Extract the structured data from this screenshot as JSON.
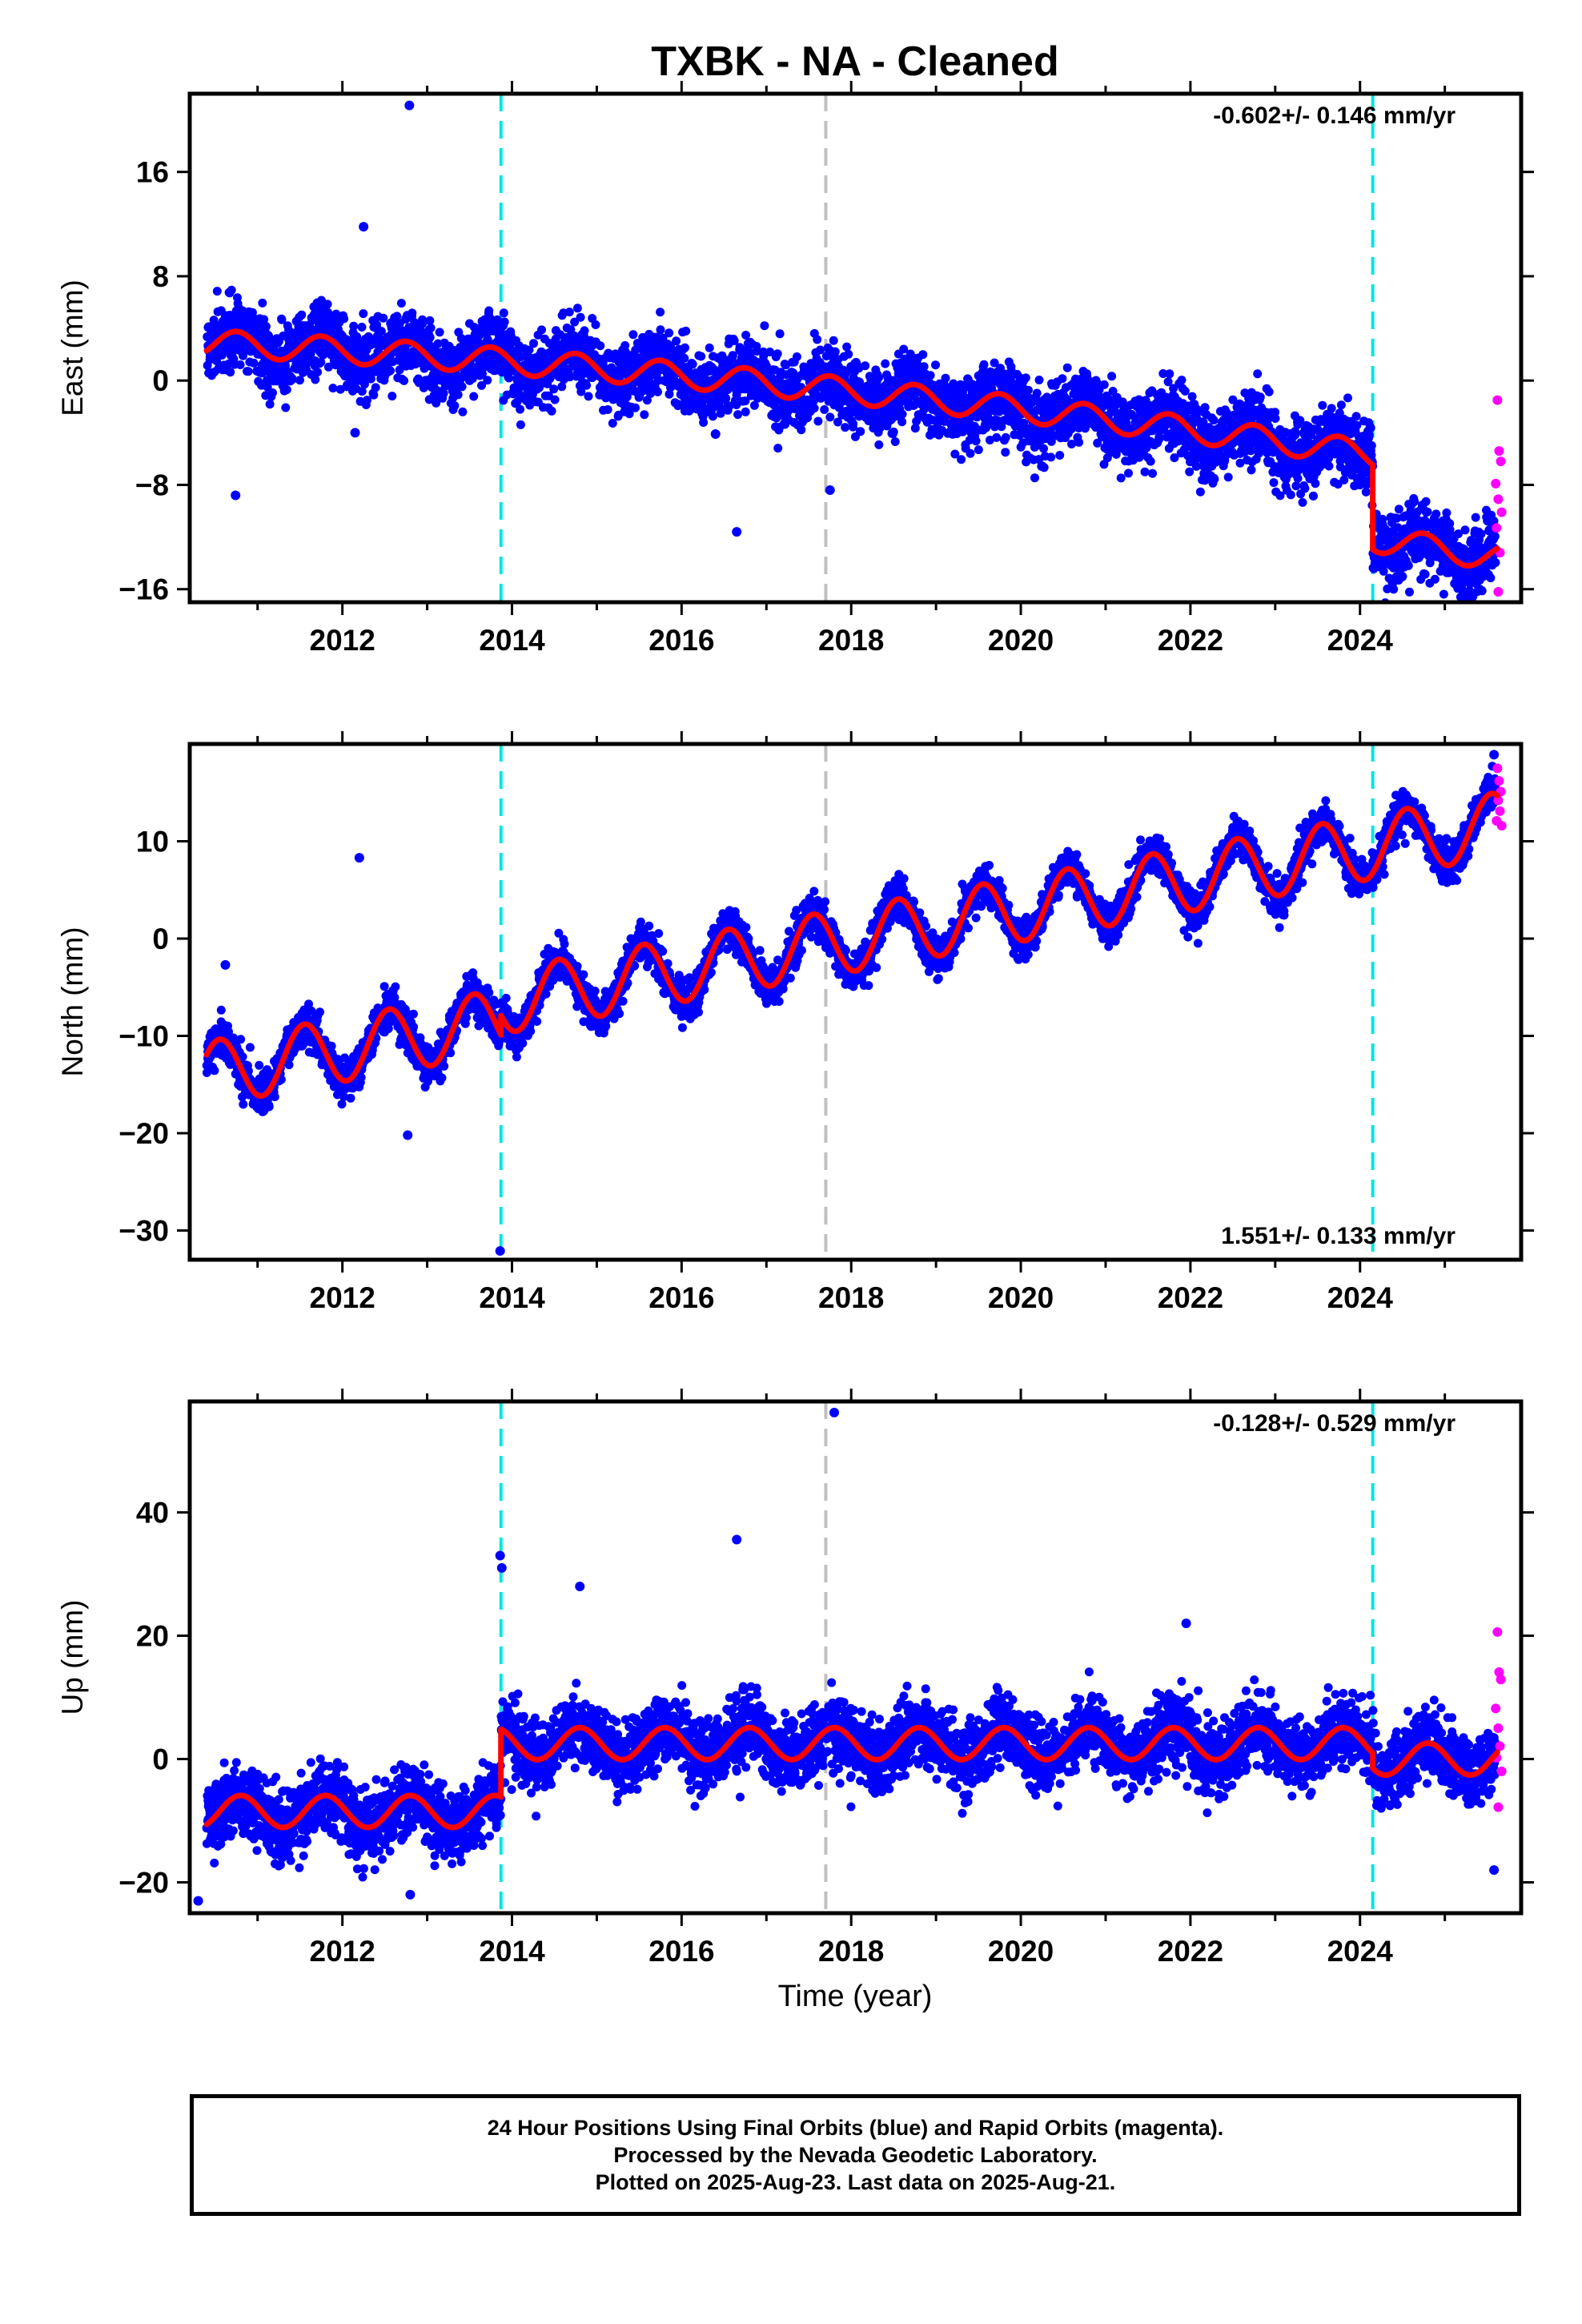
{
  "title": "TXBK  - NA - Cleaned",
  "xlabel": "Time (year)",
  "colors": {
    "final_orbits": "#0000ff",
    "rapid_orbits": "#ff00ff",
    "model": "#ff0000",
    "equipment_change": "#00e5e5",
    "other_event": "#c0c0c0"
  },
  "footer": {
    "line1": "24 Hour Positions Using Final Orbits (blue) and Rapid Orbits (magenta).",
    "line2": "Processed by the Nevada Geodetic Laboratory.",
    "line3": "Plotted on 2025-Aug-23. Last data on 2025-Aug-21."
  },
  "chart_data": [
    {
      "type": "scatter",
      "component": "east",
      "ylabel": "East (mm)",
      "rate_label": "-0.602+/- 0.146 mm/yr",
      "rate_position": "top-right",
      "xlim": [
        2010.2,
        2025.9
      ],
      "ylim": [
        -17,
        22
      ],
      "xticks": [
        2012,
        2014,
        2016,
        2018,
        2020,
        2022,
        2024
      ],
      "yticks": [
        16,
        8,
        0,
        -8,
        -16
      ],
      "vlines": [
        {
          "x": 2013.87,
          "kind": "equipment_change"
        },
        {
          "x": 2017.7,
          "kind": "other_event"
        },
        {
          "x": 2024.15,
          "kind": "equipment_change"
        }
      ],
      "model": {
        "intercept_at_2010": 3.0,
        "rate": -0.3,
        "annual_amplitude": 1.0,
        "annual_phase_year": 2010.75,
        "offsets": [
          {
            "x": 2024.15,
            "dy": -6.5
          }
        ],
        "curvature": -0.022
      },
      "noise_sd": 1.3,
      "rapid_points": [
        [
          2025.62,
          -1.5
        ],
        [
          2025.64,
          -5.4
        ],
        [
          2025.66,
          -6.2
        ],
        [
          2025.6,
          -7.9
        ],
        [
          2025.63,
          -9.1
        ],
        [
          2025.67,
          -10.1
        ],
        [
          2025.61,
          -11.3
        ],
        [
          2025.65,
          -13.2
        ],
        [
          2025.63,
          -16.2
        ]
      ],
      "outliers": [
        [
          2010.74,
          -8.8
        ],
        [
          2012.25,
          11.8
        ],
        [
          2012.79,
          21.1
        ],
        [
          2016.65,
          -11.6
        ],
        [
          2017.75,
          -8.4
        ],
        [
          2012.15,
          -4.0
        ],
        [
          2016.4,
          -4.1
        ]
      ]
    },
    {
      "type": "scatter",
      "component": "north",
      "ylabel": "North (mm)",
      "rate_label": "1.551+/- 0.133 mm/yr",
      "rate_position": "bottom-right",
      "xlim": [
        2010.2,
        2025.9
      ],
      "ylim": [
        -33,
        20
      ],
      "xticks": [
        2012,
        2014,
        2016,
        2018,
        2020,
        2022,
        2024
      ],
      "yticks": [
        10,
        0,
        -10,
        -20,
        -30
      ],
      "vlines": [
        {
          "x": 2013.87,
          "kind": "equipment_change"
        },
        {
          "x": 2017.7,
          "kind": "other_event"
        },
        {
          "x": 2024.15,
          "kind": "equipment_change"
        }
      ],
      "model": {
        "intercept_at_2010": -14.5,
        "rate": 1.55,
        "annual_amplitude": 3.3,
        "annual_phase_year": 2010.55,
        "offsets": [
          {
            "x": 2013.87,
            "dy": 2.0
          }
        ],
        "curvature": 0.0
      },
      "noise_sd": 1.0,
      "rapid_points": [
        [
          2025.62,
          17.5
        ],
        [
          2025.64,
          16.2
        ],
        [
          2025.66,
          15.1
        ],
        [
          2025.63,
          14.2
        ],
        [
          2025.65,
          13.1
        ],
        [
          2025.61,
          12.1
        ],
        [
          2025.67,
          11.6
        ]
      ],
      "outliers": [
        [
          2012.2,
          8.3
        ],
        [
          2012.77,
          -20.2
        ],
        [
          2013.86,
          -32.1
        ],
        [
          2010.62,
          -2.7
        ],
        [
          2025.58,
          18.9
        ]
      ]
    },
    {
      "type": "scatter",
      "component": "up",
      "ylabel": "Up (mm)",
      "rate_label": "-0.128+/- 0.529 mm/yr",
      "rate_position": "top-right",
      "xlim": [
        2010.2,
        2025.9
      ],
      "ylim": [
        -25,
        58
      ],
      "xticks": [
        2012,
        2014,
        2016,
        2018,
        2020,
        2022,
        2024
      ],
      "yticks": [
        40,
        20,
        0,
        -20
      ],
      "vlines": [
        {
          "x": 2013.87,
          "kind": "equipment_change"
        },
        {
          "x": 2017.7,
          "kind": "other_event"
        },
        {
          "x": 2024.15,
          "kind": "equipment_change"
        }
      ],
      "model": {
        "intercept_at_2010": -8.5,
        "rate": 0.0,
        "annual_amplitude": 2.6,
        "annual_phase_year": 2010.8,
        "offsets": [
          {
            "x": 2013.87,
            "dy": 11.0
          },
          {
            "x": 2024.15,
            "dy": -2.5
          }
        ],
        "curvature": 0.0
      },
      "noise_sd": 2.8,
      "rapid_points": [
        [
          2025.62,
          20.6
        ],
        [
          2025.64,
          14.1
        ],
        [
          2025.66,
          12.9
        ],
        [
          2025.6,
          8.2
        ],
        [
          2025.63,
          5.0
        ],
        [
          2025.65,
          2.1
        ],
        [
          2025.61,
          0.2
        ],
        [
          2025.67,
          -2.0
        ],
        [
          2025.63,
          -7.8
        ]
      ],
      "outliers": [
        [
          2017.8,
          56.2
        ],
        [
          2016.65,
          35.6
        ],
        [
          2013.86,
          33.0
        ],
        [
          2013.88,
          31.0
        ],
        [
          2014.8,
          28.0
        ],
        [
          2021.95,
          22.0
        ],
        [
          2012.8,
          -22.0
        ],
        [
          2010.3,
          -23.0
        ],
        [
          2025.58,
          -18.0
        ]
      ]
    }
  ]
}
